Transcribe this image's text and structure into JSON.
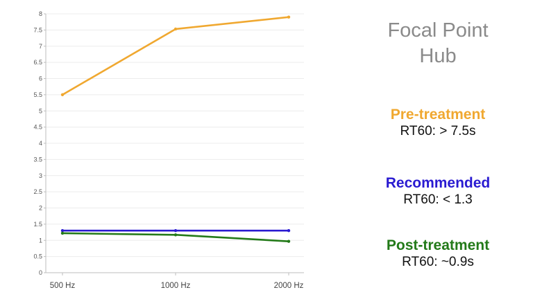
{
  "chart_data": {
    "type": "line",
    "x": [
      "500 Hz",
      "1000 Hz",
      "2000 Hz"
    ],
    "ylim": [
      0,
      8
    ],
    "yticks": [
      0,
      0.5,
      1,
      1.5,
      2,
      2.5,
      3,
      3.5,
      4,
      4.5,
      5,
      5.5,
      6,
      6.5,
      7,
      7.5,
      8
    ],
    "grid": true,
    "series": [
      {
        "name": "Pre-treatment",
        "color": "#f0a830",
        "values": [
          5.5,
          7.53,
          7.9
        ]
      },
      {
        "name": "Recommended",
        "color": "#2a1bd1",
        "values": [
          1.3,
          1.3,
          1.3
        ]
      },
      {
        "name": "Post-treatment",
        "color": "#237a19",
        "values": [
          1.22,
          1.17,
          0.97
        ]
      }
    ]
  },
  "panel": {
    "title_line1": "Focal Point",
    "title_line2": "Hub",
    "legend": [
      {
        "label": "Pre-treatment",
        "value": "RT60: > 7.5s",
        "color": "#f0a830"
      },
      {
        "label": "Recommended",
        "value": "RT60: < 1.3",
        "color": "#2a1bd1"
      },
      {
        "label": "Post-treatment",
        "value": "RT60: ~0.9s",
        "color": "#237a19"
      }
    ]
  }
}
